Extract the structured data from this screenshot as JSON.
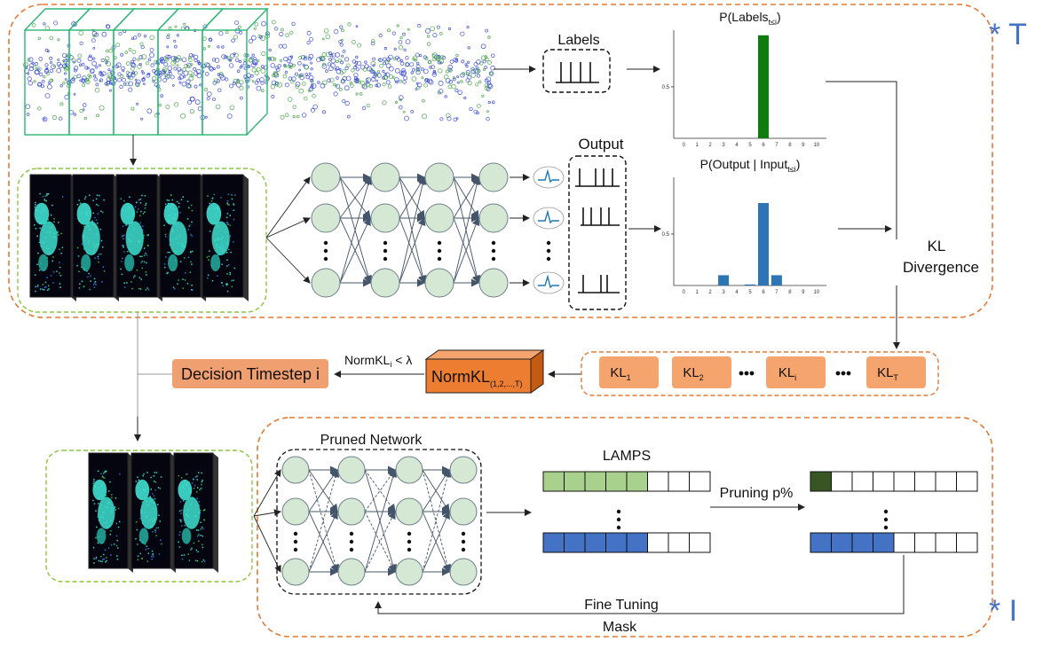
{
  "colors": {
    "dashed_orange": "#E07A35",
    "dashed_green": "#8CC63F",
    "node_fill": "#D5E8D4",
    "node_stroke": "#6C8EBF",
    "box_orange": "#F4A46C",
    "decision_fill": "#F0A070",
    "normkl_front": "#ED7D31",
    "normkl_side": "#C55A11",
    "green_bar": "#0E7C0E",
    "blue_bar": "#2E75B6",
    "lamps_green": "#A9D18E",
    "lamps_blue": "#4472C4",
    "pruned_dark": "#375623",
    "blue_marker": "#4472C4",
    "point_cloud_blue": "#2C3FD1",
    "point_cloud_green": "#3A9E3A",
    "frame_cyan": "#3FE0D0"
  },
  "labels": {
    "labels_box": "Labels",
    "output": "Output",
    "kl_line1": "KL",
    "kl_line2": "Divergence",
    "normkl_cond": "NormKL",
    "normkl_cond_sub": "i",
    "normkl_cond_rel": " < λ",
    "decision": "Decision Timestep i",
    "normkl_box": "NormKL",
    "normkl_box_sub": "(1,2,...,T)",
    "pruned_network": "Pruned Network",
    "lamps": "LAMPS",
    "pruning": "Pruning p%",
    "fine_tuning": "Fine Tuning",
    "mask": "Mask",
    "star_t": "* T",
    "star_i": "* I",
    "chart1_title_a": "P(Labels",
    "chart1_title_sub": "t≤i",
    "chart1_title_b": ")",
    "chart2_title_a": "P(Output | Input",
    "chart2_title_sub": "t≤i",
    "chart2_title_b": ")"
  },
  "kl_items": [
    {
      "label": "KL",
      "sub": "1"
    },
    {
      "label": "KL",
      "sub": "2"
    },
    {
      "label": "KL",
      "sub": "i"
    },
    {
      "label": "KL",
      "sub": "T"
    }
  ],
  "chart_data": [
    {
      "type": "bar",
      "title": "P(Labels t≤i)",
      "categories": [
        "0",
        "1",
        "2",
        "3",
        "4",
        "5",
        "6",
        "7",
        "8",
        "9",
        "10"
      ],
      "values": [
        0,
        0,
        0,
        0,
        0,
        0,
        1.0,
        0,
        0,
        0,
        0
      ],
      "ytick_labels": [
        "0.5"
      ],
      "ylim": [
        0,
        1.05
      ],
      "color": "#0E7C0E"
    },
    {
      "type": "bar",
      "title": "P(Output | Input t≤i)",
      "categories": [
        "0",
        "1",
        "2",
        "3",
        "4",
        "5",
        "6",
        "7",
        "8",
        "9",
        "10"
      ],
      "values": [
        0,
        0,
        0,
        0.1,
        0,
        0.01,
        0.8,
        0.1,
        0,
        0,
        0
      ],
      "ytick_labels": [
        "0.5"
      ],
      "ylim": [
        0,
        1.05
      ],
      "color": "#2E75B6"
    }
  ]
}
